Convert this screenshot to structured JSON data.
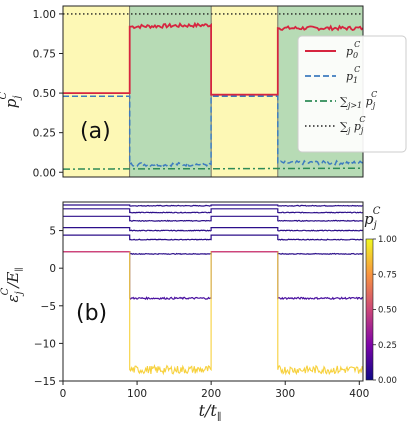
{
  "figure": {
    "panel_a_label": "(a)",
    "panel_b_label": "(b)",
    "ylabel_a": "p_j^C",
    "ylabel_b": "ε_j^C / E_∥",
    "xlabel": "t / t_∥",
    "colorbar_label": "p_j^C"
  },
  "colors": {
    "yellow_bg": "#fdf8b5",
    "green_bg": "#b7dbb5",
    "p0": "#d6253f",
    "p1": "#3d7bbf",
    "sum_gt1": "#2e8b57",
    "sum_all": "#222222",
    "low_state": "#2c0f8a"
  },
  "chart_data": [
    {
      "type": "line",
      "panel": "(a)",
      "ylabel": "p_j^C",
      "xlim": [
        0,
        405
      ],
      "ylim": [
        -0.03,
        1.05
      ],
      "yticks": [
        0.0,
        0.25,
        0.5,
        0.75,
        1.0
      ],
      "ytick_labels": [
        "0.00",
        "0.25",
        "0.50",
        "0.75",
        "1.00"
      ],
      "background_segments": [
        {
          "from": 0,
          "to": 90,
          "color": "yellow"
        },
        {
          "from": 90,
          "to": 200,
          "color": "green"
        },
        {
          "from": 200,
          "to": 290,
          "color": "yellow"
        },
        {
          "from": 290,
          "to": 405,
          "color": "green"
        }
      ],
      "legend": [
        "p_0^C",
        "p_1^C",
        "∑_{j>1} p_j^C",
        "∑_j p_j^C"
      ],
      "legend_position": "center-right",
      "series": [
        {
          "name": "p_0^C",
          "style": "solid",
          "points": [
            [
              0,
              0.5
            ],
            [
              90,
              0.5
            ],
            [
              90,
              0.92
            ],
            [
              200,
              0.93
            ],
            [
              200,
              0.49
            ],
            [
              290,
              0.49
            ],
            [
              290,
              0.91
            ],
            [
              405,
              0.91
            ]
          ]
        },
        {
          "name": "p_1^C",
          "style": "dashed",
          "points": [
            [
              0,
              0.48
            ],
            [
              90,
              0.48
            ],
            [
              90,
              0.05
            ],
            [
              200,
              0.05
            ],
            [
              200,
              0.48
            ],
            [
              290,
              0.48
            ],
            [
              290,
              0.06
            ],
            [
              405,
              0.06
            ]
          ]
        },
        {
          "name": "∑_{j>1} p_j^C",
          "style": "dashdot",
          "points": [
            [
              0,
              0.02
            ],
            [
              405,
              0.025
            ]
          ]
        },
        {
          "name": "∑_j p_j^C",
          "style": "dotted",
          "points": [
            [
              0,
              1.0
            ],
            [
              405,
              1.0
            ]
          ]
        }
      ]
    },
    {
      "type": "line",
      "panel": "(b)",
      "ylabel": "ε_j^C / E_∥",
      "xlabel": "t / t_∥",
      "xlim": [
        0,
        405
      ],
      "ylim": [
        -15,
        8.8
      ],
      "xticks": [
        0,
        100,
        200,
        300,
        400
      ],
      "xtick_labels": [
        "0",
        "100",
        "200",
        "300",
        "400"
      ],
      "yticks": [
        -15,
        -10,
        -5,
        0,
        5
      ],
      "ytick_labels": [
        "−15",
        "−10",
        "−5",
        "0",
        "5"
      ],
      "colorbar": {
        "range": [
          0,
          1
        ],
        "ticks": [
          "0.00",
          "0.25",
          "0.50",
          "0.75",
          "1.00"
        ]
      },
      "levels": [
        {
          "high": 8.4,
          "low": 8.3,
          "color": "dark"
        },
        {
          "high": 7.9,
          "low": 7.4,
          "color": "dark"
        },
        {
          "high": 6.9,
          "low": 6.3,
          "color": "dark"
        },
        {
          "high": 5.4,
          "low": 5.0,
          "color": "dark"
        },
        {
          "high": 4.4,
          "low": 3.8,
          "color": "dark"
        },
        {
          "high": 2.2,
          "low": 1.9,
          "color": "dark"
        },
        {
          "high": 2.2,
          "low": -4.0,
          "color": "purple"
        },
        {
          "high": 2.2,
          "low": -13.5,
          "color": "yellow"
        }
      ]
    }
  ]
}
